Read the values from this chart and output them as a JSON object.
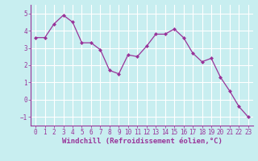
{
  "x": [
    0,
    1,
    2,
    3,
    4,
    5,
    6,
    7,
    8,
    9,
    10,
    11,
    12,
    13,
    14,
    15,
    16,
    17,
    18,
    19,
    20,
    21,
    22,
    23
  ],
  "y": [
    3.6,
    3.6,
    4.4,
    4.9,
    4.5,
    3.3,
    3.3,
    2.9,
    1.7,
    1.5,
    2.6,
    2.5,
    3.1,
    3.8,
    3.8,
    4.1,
    3.6,
    2.7,
    2.2,
    2.4,
    1.3,
    0.5,
    -0.4,
    -1.0
  ],
  "line_color": "#993399",
  "marker": "D",
  "marker_size": 2.0,
  "linewidth": 0.9,
  "background_color": "#c8eef0",
  "grid_color": "#ffffff",
  "xlabel": "Windchill (Refroidissement éolien,°C)",
  "ylim": [
    -1.5,
    5.5
  ],
  "xlim": [
    -0.5,
    23.5
  ],
  "yticks": [
    -1,
    0,
    1,
    2,
    3,
    4,
    5
  ],
  "xticks": [
    0,
    1,
    2,
    3,
    4,
    5,
    6,
    7,
    8,
    9,
    10,
    11,
    12,
    13,
    14,
    15,
    16,
    17,
    18,
    19,
    20,
    21,
    22,
    23
  ],
  "tick_fontsize": 5.5,
  "xlabel_fontsize": 6.5,
  "tick_color": "#993399",
  "label_color": "#993399"
}
